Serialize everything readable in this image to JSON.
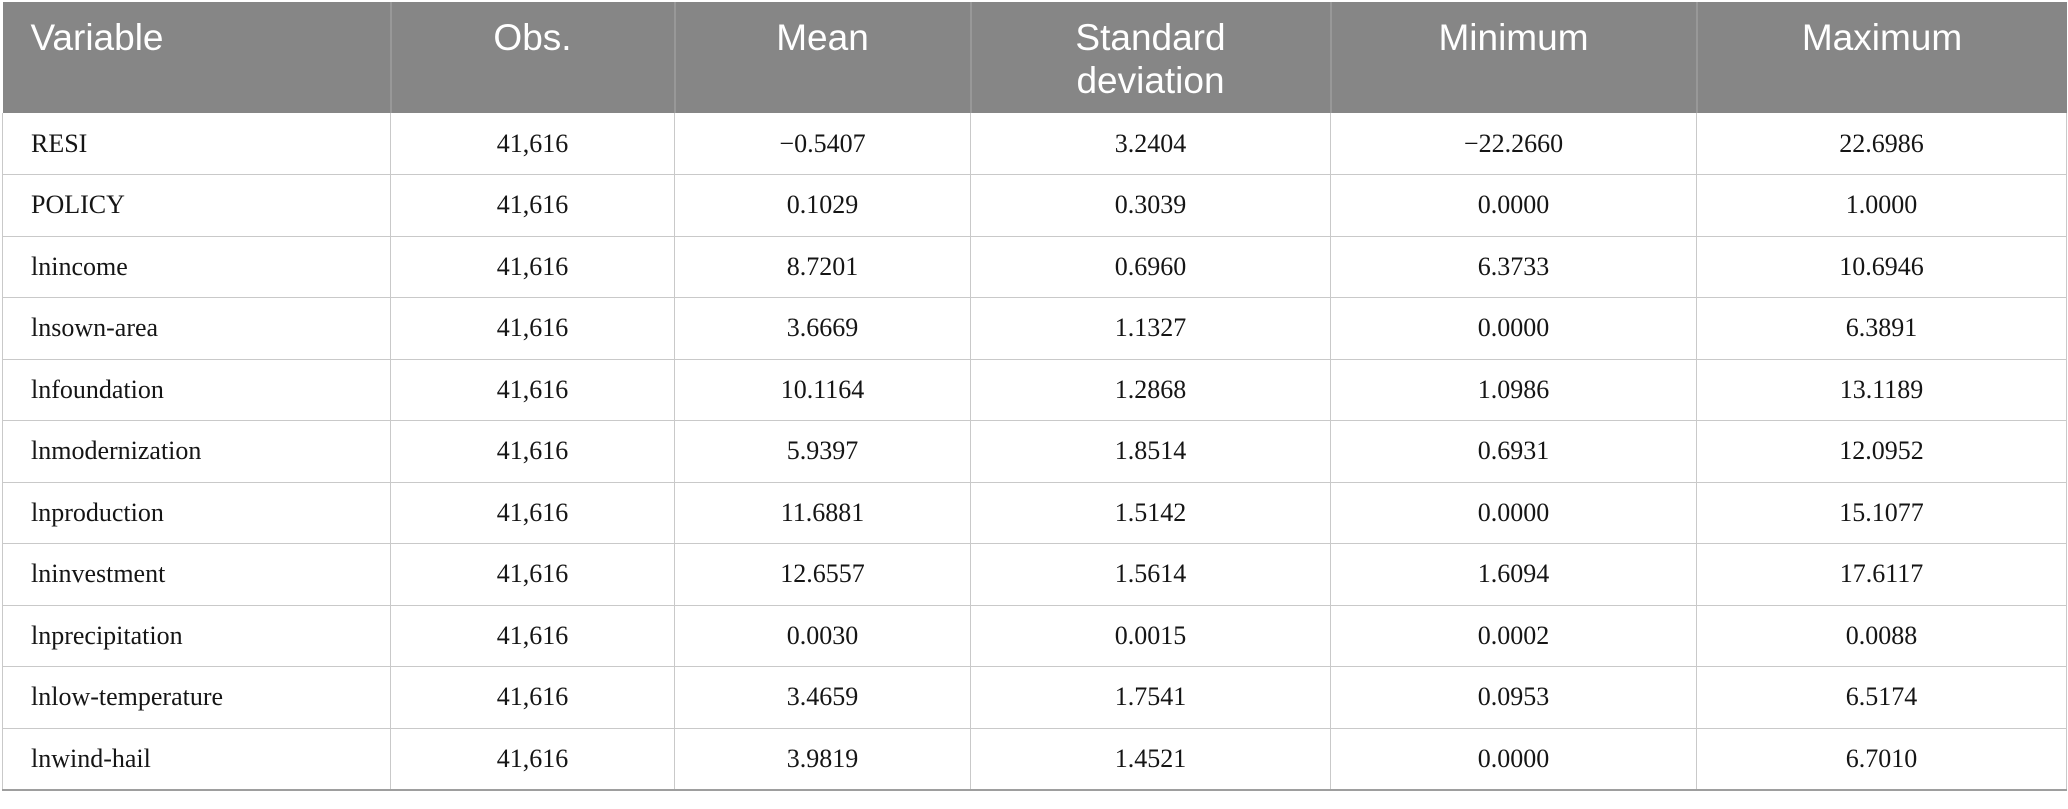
{
  "table": {
    "name": "descriptive-statistics-table",
    "columns": [
      {
        "label": "Variable",
        "align": "left"
      },
      {
        "label": "Obs.",
        "align": "center"
      },
      {
        "label": "Mean",
        "align": "center"
      },
      {
        "label": "Standard deviation",
        "align": "center"
      },
      {
        "label": "Minimum",
        "align": "center"
      },
      {
        "label": "Maximum",
        "align": "center"
      }
    ],
    "rows": [
      [
        "RESI",
        "41,616",
        "−0.5407",
        "3.2404",
        "−22.2660",
        "22.6986"
      ],
      [
        "POLICY",
        "41,616",
        "0.1029",
        "0.3039",
        "0.0000",
        "1.0000"
      ],
      [
        "lnincome",
        "41,616",
        "8.7201",
        "0.6960",
        "6.3733",
        "10.6946"
      ],
      [
        "lnsown-area",
        "41,616",
        "3.6669",
        "1.1327",
        "0.0000",
        "6.3891"
      ],
      [
        "lnfoundation",
        "41,616",
        "10.1164",
        "1.2868",
        "1.0986",
        "13.1189"
      ],
      [
        "lnmodernization",
        "41,616",
        "5.9397",
        "1.8514",
        "0.6931",
        "12.0952"
      ],
      [
        "lnproduction",
        "41,616",
        "11.6881",
        "1.5142",
        "0.0000",
        "15.1077"
      ],
      [
        "lninvestment",
        "41,616",
        "12.6557",
        "1.5614",
        "1.6094",
        "17.6117"
      ],
      [
        "lnprecipitation",
        "41,616",
        "0.0030",
        "0.0015",
        "0.0002",
        "0.0088"
      ],
      [
        "lnlow-temperature",
        "41,616",
        "3.4659",
        "1.7541",
        "0.0953",
        "6.5174"
      ],
      [
        "lnwind-hail",
        "41,616",
        "3.9819",
        "1.4521",
        "0.0000",
        "6.7010"
      ]
    ]
  },
  "colors": {
    "header_background": "#868686",
    "header_text": "#ffffff",
    "header_divider": "#989898",
    "row_divider": "#c9c9c9",
    "bottom_border": "#9e9e9e",
    "body_text": "#151515",
    "page_background": "#ffffff"
  }
}
